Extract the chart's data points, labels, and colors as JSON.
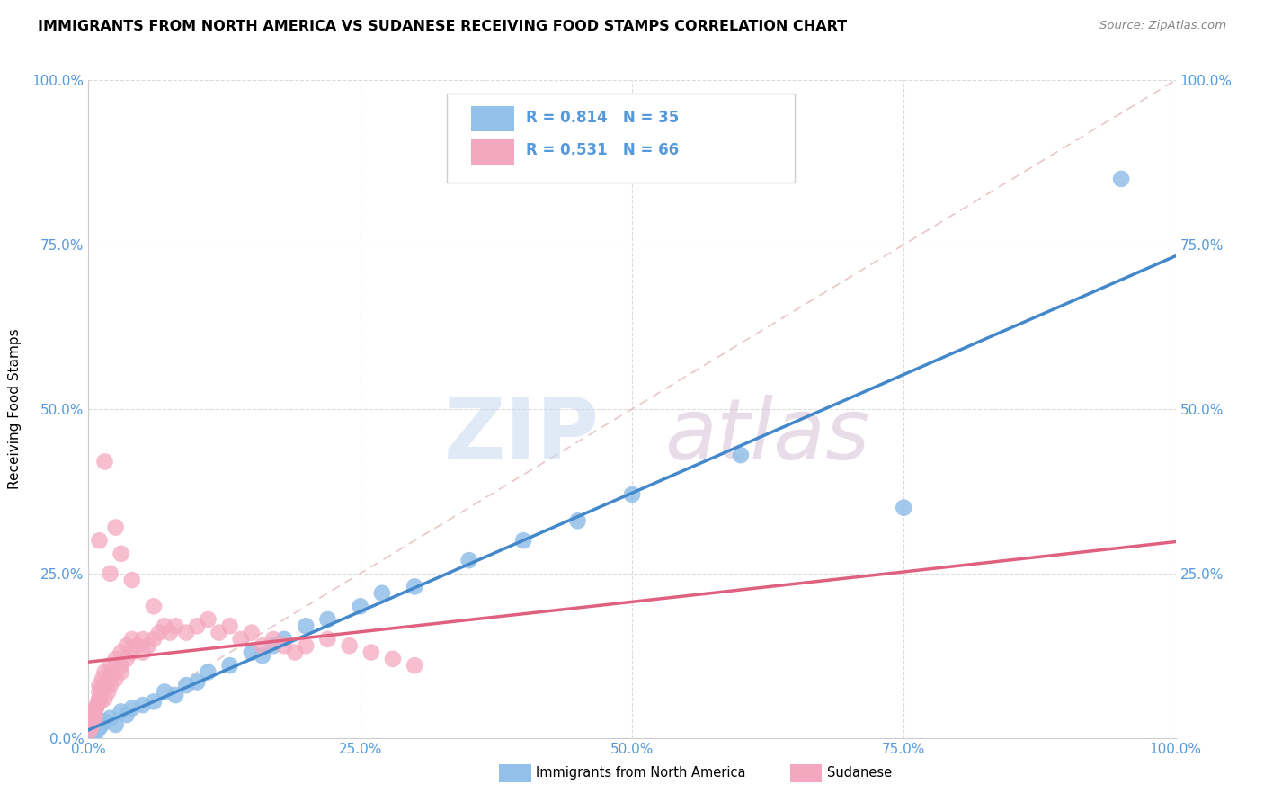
{
  "title": "IMMIGRANTS FROM NORTH AMERICA VS SUDANESE RECEIVING FOOD STAMPS CORRELATION CHART",
  "source_text": "Source: ZipAtlas.com",
  "ylabel": "Receiving Food Stamps",
  "x_tick_labels": [
    "0.0%",
    "25.0%",
    "50.0%",
    "75.0%",
    "100.0%"
  ],
  "x_tick_vals": [
    0,
    25,
    50,
    75,
    100
  ],
  "y_tick_labels": [
    "0.0%",
    "25.0%",
    "50.0%",
    "75.0%",
    "100.0%"
  ],
  "y_tick_vals": [
    0,
    25,
    50,
    75,
    100
  ],
  "right_y_tick_labels": [
    "25.0%",
    "50.0%",
    "75.0%",
    "100.0%"
  ],
  "right_y_tick_vals": [
    25,
    50,
    75,
    100
  ],
  "blue_R": 0.814,
  "blue_N": 35,
  "pink_R": 0.531,
  "pink_N": 66,
  "blue_color": "#92c0e8",
  "pink_color": "#f4a8c0",
  "blue_line_color": "#4488cc",
  "pink_line_color": "#e06080",
  "diag_line_color": "#e8c0c0",
  "blue_label": "Immigrants from North America",
  "pink_label": "Sudanese",
  "tick_color": "#5599dd",
  "blue_scatter_x": [
    0.3,
    0.5,
    0.7,
    1.0,
    1.2,
    1.5,
    2.0,
    2.5,
    3.0,
    3.5,
    4.0,
    5.0,
    6.0,
    7.0,
    8.0,
    9.0,
    10.0,
    11.0,
    13.0,
    15.0,
    16.0,
    17.0,
    18.0,
    20.0,
    22.0,
    25.0,
    27.0,
    30.0,
    35.0,
    40.0,
    45.0,
    50.0,
    60.0,
    75.0,
    95.0
  ],
  "blue_scatter_y": [
    0.5,
    1.0,
    0.8,
    1.5,
    2.0,
    2.5,
    3.0,
    2.0,
    4.0,
    3.5,
    4.5,
    5.0,
    5.5,
    7.0,
    6.5,
    8.0,
    8.5,
    10.0,
    11.0,
    13.0,
    12.5,
    14.0,
    15.0,
    17.0,
    18.0,
    20.0,
    22.0,
    23.0,
    27.0,
    30.0,
    33.0,
    37.0,
    43.0,
    35.0,
    85.0
  ],
  "pink_scatter_x": [
    0.1,
    0.2,
    0.3,
    0.4,
    0.5,
    0.5,
    0.6,
    0.7,
    0.8,
    0.9,
    1.0,
    1.0,
    1.0,
    1.1,
    1.2,
    1.3,
    1.5,
    1.5,
    1.5,
    1.8,
    2.0,
    2.0,
    2.0,
    2.2,
    2.5,
    2.5,
    3.0,
    3.0,
    3.0,
    3.5,
    3.5,
    4.0,
    4.0,
    4.5,
    5.0,
    5.0,
    5.5,
    6.0,
    6.0,
    6.5,
    7.0,
    7.5,
    8.0,
    9.0,
    10.0,
    11.0,
    12.0,
    13.0,
    14.0,
    15.0,
    16.0,
    17.0,
    18.0,
    19.0,
    20.0,
    22.0,
    24.0,
    26.0,
    28.0,
    30.0,
    1.0,
    2.0,
    1.5,
    2.5,
    3.0,
    4.0
  ],
  "pink_scatter_y": [
    1.0,
    1.5,
    2.0,
    2.5,
    3.0,
    4.0,
    3.5,
    4.5,
    5.0,
    5.5,
    6.0,
    7.0,
    8.0,
    5.5,
    7.5,
    9.0,
    6.0,
    8.0,
    10.0,
    7.0,
    8.0,
    9.0,
    11.0,
    10.0,
    9.0,
    12.0,
    10.0,
    11.0,
    13.0,
    12.0,
    14.0,
    13.0,
    15.0,
    14.0,
    13.0,
    15.0,
    14.0,
    15.0,
    20.0,
    16.0,
    17.0,
    16.0,
    17.0,
    16.0,
    17.0,
    18.0,
    16.0,
    17.0,
    15.0,
    16.0,
    14.0,
    15.0,
    14.0,
    13.0,
    14.0,
    15.0,
    14.0,
    13.0,
    12.0,
    11.0,
    30.0,
    25.0,
    42.0,
    32.0,
    28.0,
    24.0
  ]
}
